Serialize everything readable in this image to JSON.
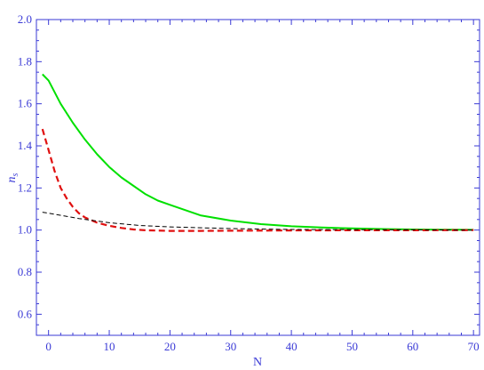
{
  "chart_data": {
    "type": "line",
    "title": "",
    "xlabel": "N",
    "ylabel_base": "n",
    "ylabel_sub": "s",
    "xlim": [
      -2,
      71
    ],
    "ylim": [
      0.5,
      2.0
    ],
    "x_ticks": [
      0,
      10,
      20,
      30,
      40,
      50,
      60,
      70
    ],
    "x_tick_labels": [
      "0",
      "10",
      "20",
      "30",
      "40",
      "50",
      "60",
      "70"
    ],
    "y_ticks": [
      0.6,
      0.8,
      1.0,
      1.2,
      1.4,
      1.6,
      1.8,
      2.0
    ],
    "y_tick_labels": [
      "0.6",
      "0.8",
      "1.0",
      "1.2",
      "1.4",
      "1.6",
      "1.8",
      "2.0"
    ],
    "grid": false,
    "legend": "none",
    "axis_color": "#3a3ad6",
    "series": [
      {
        "color": "#00e000",
        "style": "solid",
        "x": [
          -1,
          0,
          2,
          4,
          6,
          8,
          10,
          12,
          14,
          16,
          18,
          20,
          25,
          30,
          35,
          40,
          45,
          50,
          55,
          60,
          65,
          70
        ],
        "y": [
          1.74,
          1.71,
          1.6,
          1.51,
          1.43,
          1.36,
          1.3,
          1.25,
          1.21,
          1.17,
          1.14,
          1.12,
          1.07,
          1.045,
          1.028,
          1.018,
          1.012,
          1.008,
          1.005,
          1.003,
          1.002,
          1.001
        ]
      },
      {
        "color": "#e01010",
        "style": "dashed",
        "x": [
          -1,
          0,
          1,
          2,
          3,
          4,
          5,
          6,
          8,
          10,
          12,
          14,
          16,
          20,
          25,
          30,
          40,
          50,
          60,
          70
        ],
        "y": [
          1.48,
          1.38,
          1.28,
          1.2,
          1.15,
          1.11,
          1.08,
          1.06,
          1.035,
          1.02,
          1.01,
          1.003,
          0.999,
          0.996,
          0.996,
          0.997,
          0.998,
          0.999,
          0.999,
          1.0
        ]
      },
      {
        "color": "#000000",
        "style": "thin-dashed",
        "x": [
          -1,
          0,
          5,
          10,
          15,
          20,
          30,
          40,
          50,
          60,
          70
        ],
        "y": [
          1.085,
          1.08,
          1.055,
          1.035,
          1.022,
          1.015,
          1.007,
          1.003,
          1.002,
          1.001,
          1.0
        ]
      }
    ]
  }
}
